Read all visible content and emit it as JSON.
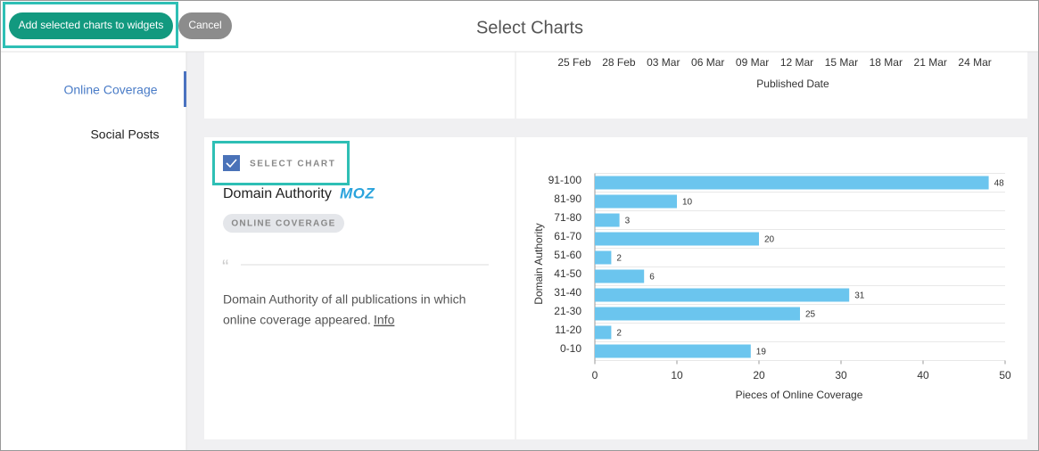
{
  "header": {
    "primary_button": "Add selected charts to widgets",
    "cancel_button": "Cancel",
    "title": "Select Charts"
  },
  "sidebar": {
    "items": [
      "Online Coverage",
      "Social Posts"
    ]
  },
  "previous_chart": {
    "x_labels": [
      "25 Feb",
      "28 Feb",
      "03 Mar",
      "06 Mar",
      "09 Mar",
      "12 Mar",
      "15 Mar",
      "18 Mar",
      "21 Mar",
      "24 Mar"
    ],
    "xlabel": "Published Date"
  },
  "card": {
    "checkbox_label": "SELECT CHART",
    "title": "Domain Authority",
    "logo": "MOZ",
    "tag": "ONLINE COVERAGE",
    "quote": "“",
    "description_lines": [
      "Domain Authority of all publications in which",
      "online coverage appeared."
    ],
    "link": "Info"
  },
  "chart_data": {
    "type": "hbar",
    "xlabel": "Pieces of Online Coverage",
    "ylabel": "Domain Authority",
    "categories": [
      "91-100",
      "81-90",
      "71-80",
      "61-70",
      "51-60",
      "41-50",
      "31-40",
      "21-30",
      "11-20",
      "0-10"
    ],
    "values": [
      48,
      10,
      3,
      20,
      2,
      6,
      31,
      25,
      2,
      19
    ],
    "color": "#6bc5ee",
    "xlim": [
      0,
      50
    ],
    "xticks": [
      0,
      10,
      20,
      30,
      40,
      50
    ]
  }
}
